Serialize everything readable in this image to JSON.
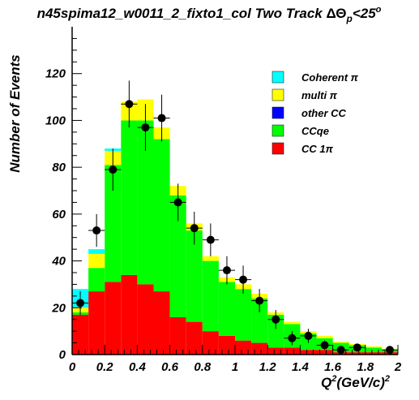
{
  "chart_data": {
    "type": "bar",
    "stacked": true,
    "title_main": "n45spima12_w0011_2_fixto1_col Two Track ",
    "title_cut": "ΔΘ",
    "title_sub": "p",
    "title_tail": "<25",
    "title_sup": "o",
    "ylabel": "Number of Events",
    "xlabel_main": "Q",
    "xlabel_sup1": "2",
    "xlabel_mid": "(GeV/c)",
    "xlabel_sup2": "2",
    "xlim": [
      0,
      2
    ],
    "ylim": [
      0,
      140
    ],
    "x_ticks": [
      {
        "v": 0,
        "label": "0"
      },
      {
        "v": 0.2,
        "label": "0.2"
      },
      {
        "v": 0.4,
        "label": "0.4"
      },
      {
        "v": 0.6,
        "label": "0.6"
      },
      {
        "v": 0.8,
        "label": "0.8"
      },
      {
        "v": 1,
        "label": "1"
      },
      {
        "v": 1.2,
        "label": "1.2"
      },
      {
        "v": 1.4,
        "label": "1.4"
      },
      {
        "v": 1.6,
        "label": "1.6"
      },
      {
        "v": 1.8,
        "label": "1.8"
      },
      {
        "v": 2,
        "label": "2"
      }
    ],
    "y_ticks": [
      {
        "v": 0,
        "label": "0"
      },
      {
        "v": 20,
        "label": "20"
      },
      {
        "v": 40,
        "label": "40"
      },
      {
        "v": 60,
        "label": "60"
      },
      {
        "v": 80,
        "label": "80"
      },
      {
        "v": 100,
        "label": "100"
      },
      {
        "v": 120,
        "label": "120"
      }
    ],
    "bin_edges": [
      0,
      0.1,
      0.2,
      0.3,
      0.4,
      0.5,
      0.6,
      0.7,
      0.8,
      0.9,
      1.0,
      1.1,
      1.2,
      1.3,
      1.4,
      1.5,
      1.6,
      1.7,
      1.8,
      1.9,
      2.0
    ],
    "series": [
      {
        "name": "CC 1π",
        "color": "#ff0000",
        "values": [
          17,
          27,
          31,
          34,
          30,
          27,
          16,
          14,
          10,
          8,
          6,
          5,
          3,
          3,
          2,
          2,
          1,
          1,
          1,
          1
        ]
      },
      {
        "name": "CCqe",
        "color": "#00ff00",
        "values": [
          1,
          10,
          50,
          66,
          70,
          65,
          52,
          39,
          30,
          23,
          22,
          19,
          14,
          10,
          7,
          5,
          4,
          3,
          2,
          1
        ]
      },
      {
        "name": "other CC",
        "color": "#0000ff",
        "values": [
          0,
          0,
          0,
          0,
          0,
          0,
          0,
          0,
          0,
          0,
          0,
          0,
          0,
          0,
          0,
          0,
          0,
          0,
          0,
          0
        ]
      },
      {
        "name": "multi π",
        "color": "#ffff00",
        "values": [
          2,
          6,
          6,
          8,
          9,
          5,
          4,
          3,
          2,
          2,
          2,
          2,
          1,
          1,
          1,
          1,
          0.5,
          0.5,
          0.5,
          0.5
        ]
      },
      {
        "name": "Coherent π",
        "color": "#00ffff",
        "values": [
          8,
          2,
          1,
          0,
          0,
          0,
          0,
          0,
          0,
          0,
          0,
          0,
          0,
          0,
          0,
          0,
          0,
          0,
          0,
          0
        ]
      }
    ],
    "legend_order": [
      4,
      3,
      2,
      1,
      0
    ],
    "legend_position": "top-right",
    "data_points": [
      {
        "x": 0.05,
        "y": 22,
        "err": 5
      },
      {
        "x": 0.15,
        "y": 53,
        "err": 7
      },
      {
        "x": 0.25,
        "y": 79,
        "err": 9
      },
      {
        "x": 0.35,
        "y": 107,
        "err": 10
      },
      {
        "x": 0.45,
        "y": 97,
        "err": 10
      },
      {
        "x": 0.55,
        "y": 101,
        "err": 10
      },
      {
        "x": 0.65,
        "y": 65,
        "err": 8
      },
      {
        "x": 0.75,
        "y": 54,
        "err": 7
      },
      {
        "x": 0.85,
        "y": 49,
        "err": 7
      },
      {
        "x": 0.95,
        "y": 36,
        "err": 6
      },
      {
        "x": 1.05,
        "y": 32,
        "err": 6
      },
      {
        "x": 1.15,
        "y": 23,
        "err": 5
      },
      {
        "x": 1.25,
        "y": 15,
        "err": 4
      },
      {
        "x": 1.35,
        "y": 7,
        "err": 3
      },
      {
        "x": 1.45,
        "y": 8,
        "err": 3
      },
      {
        "x": 1.55,
        "y": 4,
        "err": 2
      },
      {
        "x": 1.65,
        "y": 2,
        "err": 1.5
      },
      {
        "x": 1.75,
        "y": 3,
        "err": 1.7
      },
      {
        "x": 1.95,
        "y": 2,
        "err": 1.5
      }
    ]
  }
}
